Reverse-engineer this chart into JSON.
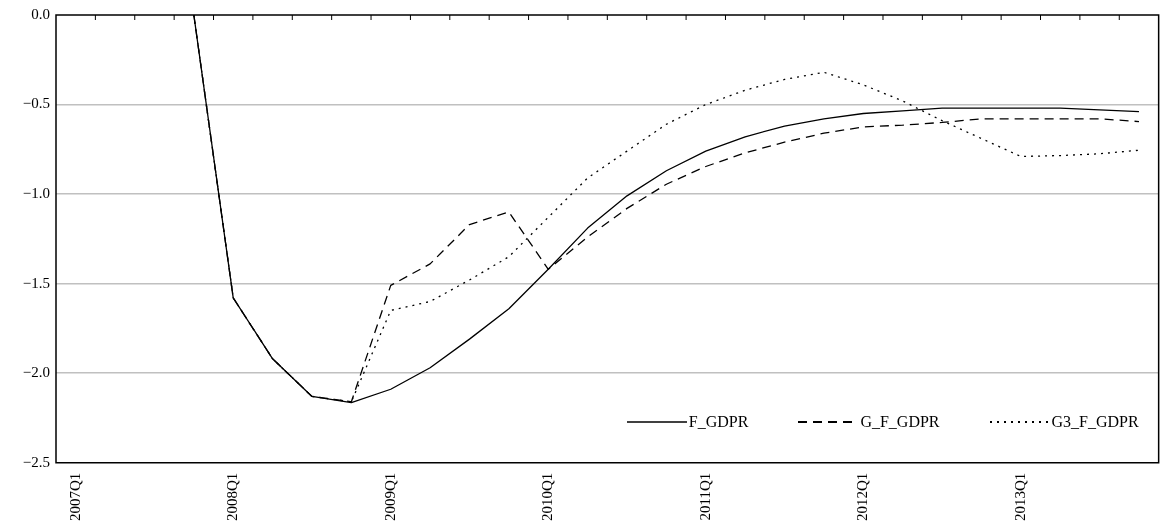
{
  "chart_data": {
    "type": "line",
    "categories": [
      "2007Q1",
      null,
      null,
      null,
      "2008Q1",
      null,
      null,
      null,
      "2009Q1",
      null,
      null,
      null,
      "2010Q1",
      null,
      null,
      null,
      "2011Q1",
      null,
      null,
      null,
      "2012Q1",
      null,
      null,
      null,
      "2013Q1",
      null,
      null,
      null
    ],
    "series": [
      {
        "name": "F_GDPR",
        "color": "#000000",
        "line_style": "solid",
        "values": [
          null,
          null,
          null,
          0.0,
          -1.58,
          -1.92,
          -2.13,
          -2.165,
          -2.09,
          -1.97,
          -1.81,
          -1.64,
          -1.42,
          -1.19,
          -1.01,
          -0.87,
          -0.76,
          -0.68,
          -0.62,
          -0.58,
          -0.55,
          -0.535,
          -0.52,
          -0.52,
          -0.52,
          -0.52,
          -0.53,
          -0.54
        ]
      },
      {
        "name": "G_F_GDPR",
        "color": "#000000",
        "line_style": "dashed",
        "values": [
          null,
          null,
          null,
          0.0,
          -1.58,
          -1.92,
          -2.13,
          -2.16,
          -1.51,
          -1.39,
          -1.17,
          -1.1,
          -1.42,
          -1.24,
          -1.08,
          -0.945,
          -0.846,
          -0.77,
          -0.71,
          -0.66,
          -0.625,
          -0.615,
          -0.6,
          -0.58,
          -0.58,
          -0.58,
          -0.58,
          -0.595
        ]
      },
      {
        "name": "G3_F_GDPR",
        "color": "#000000",
        "line_style": "dotted",
        "values": [
          null,
          null,
          null,
          0.0,
          -1.58,
          -1.92,
          -2.13,
          -2.16,
          -1.65,
          -1.6,
          -1.48,
          -1.35,
          -1.13,
          -0.91,
          -0.76,
          -0.61,
          -0.5,
          -0.42,
          -0.36,
          -0.32,
          -0.39,
          -0.48,
          -0.59,
          -0.69,
          -0.79,
          -0.785,
          -0.775,
          -0.755
        ]
      }
    ],
    "ylim": [
      -2.5,
      0.0
    ],
    "yticks": [
      {
        "value": 0,
        "label": "0.0"
      },
      {
        "value": -0.5,
        "label": "−0.5"
      },
      {
        "value": -1,
        "label": "−1.0"
      },
      {
        "value": -1.5,
        "label": "−1.5"
      },
      {
        "value": -2,
        "label": "−2.0"
      },
      {
        "value": -2.5,
        "label": "−2.5"
      }
    ],
    "grid": "y",
    "legend": "bottom right",
    "marker": "none"
  }
}
